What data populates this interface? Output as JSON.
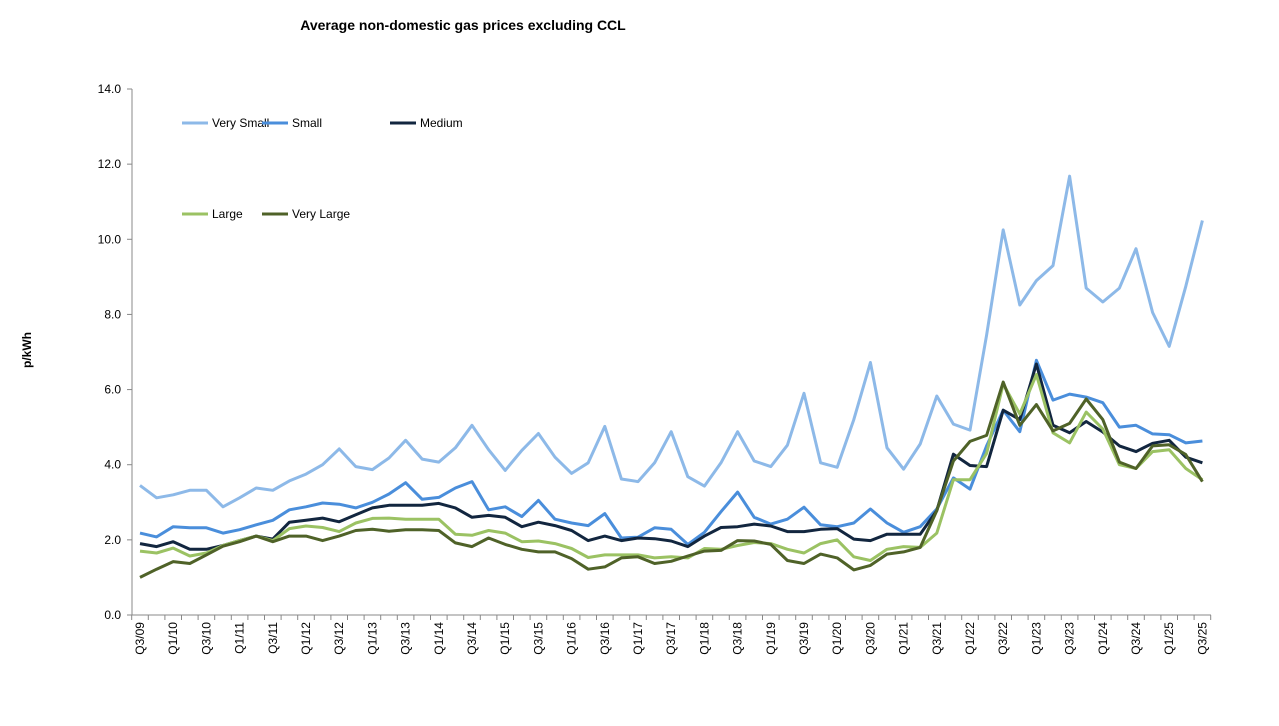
{
  "chart_data": {
    "type": "line",
    "title": "Average non-domestic gas prices excluding CCL",
    "ylabel": "p/kWh",
    "xlabel": "",
    "ylim": [
      0,
      14
    ],
    "y_ticks": [
      "0.0",
      "2.0",
      "4.0",
      "6.0",
      "8.0",
      "10.0",
      "12.0",
      "14.0"
    ],
    "grid": false,
    "legend_placement": "top-left",
    "x_tick_labels": [
      "Q3/09",
      "Q1/10",
      "Q3/10",
      "Q1/11",
      "Q3/11",
      "Q1/12",
      "Q3/12",
      "Q1/13",
      "Q3/13",
      "Q1/14",
      "Q3/14",
      "Q1/15",
      "Q3/15",
      "Q1/16",
      "Q3/16",
      "Q1/17",
      "Q3/17",
      "Q1/18",
      "Q3/18",
      "Q1/19",
      "Q3/19",
      "Q1/20",
      "Q3/20",
      "Q1/21",
      "Q3/21",
      "Q1/22",
      "Q3/22",
      "Q1/23",
      "Q3/23",
      "Q1/24",
      "Q3/24",
      "Q1/25",
      "Q3/25"
    ],
    "series": [
      {
        "name": "Very Small",
        "color": "#8DB9E8",
        "values": [
          3.45,
          3.12,
          3.2,
          3.32,
          3.32,
          2.88,
          3.12,
          3.38,
          3.32,
          3.57,
          3.75,
          4.0,
          4.42,
          3.95,
          3.87,
          4.18,
          4.65,
          4.15,
          4.07,
          4.45,
          5.05,
          4.4,
          3.85,
          4.38,
          4.83,
          4.2,
          3.77,
          4.05,
          5.02,
          3.62,
          3.55,
          4.05,
          4.88,
          3.68,
          3.43,
          4.05,
          4.88,
          4.1,
          3.95,
          4.52,
          5.9,
          4.05,
          3.93,
          5.2,
          6.72,
          4.45,
          3.88,
          4.55,
          5.83,
          5.08,
          4.92,
          7.45,
          10.25,
          8.25,
          8.9,
          9.3,
          11.68,
          8.7,
          8.33,
          8.7,
          9.75,
          8.05,
          7.15,
          8.75,
          10.5
        ]
      },
      {
        "name": "Small",
        "color": "#4A8EDB",
        "values": [
          2.18,
          2.08,
          2.35,
          2.32,
          2.32,
          2.18,
          2.27,
          2.4,
          2.52,
          2.8,
          2.88,
          2.98,
          2.95,
          2.85,
          3.0,
          3.22,
          3.52,
          3.08,
          3.13,
          3.38,
          3.55,
          2.8,
          2.88,
          2.62,
          3.05,
          2.55,
          2.45,
          2.38,
          2.7,
          2.05,
          2.07,
          2.32,
          2.28,
          1.88,
          2.2,
          2.75,
          3.27,
          2.6,
          2.42,
          2.55,
          2.87,
          2.4,
          2.35,
          2.45,
          2.82,
          2.45,
          2.2,
          2.35,
          2.82,
          3.65,
          3.35,
          4.5,
          5.45,
          4.88,
          6.78,
          5.72,
          5.88,
          5.8,
          5.65,
          5.0,
          5.05,
          4.82,
          4.8,
          4.58,
          4.63
        ]
      },
      {
        "name": "Medium",
        "color": "#12263F",
        "values": [
          1.9,
          1.82,
          1.95,
          1.75,
          1.75,
          1.85,
          1.98,
          2.1,
          2.02,
          2.47,
          2.52,
          2.58,
          2.48,
          2.67,
          2.85,
          2.92,
          2.92,
          2.92,
          2.97,
          2.85,
          2.6,
          2.65,
          2.6,
          2.35,
          2.47,
          2.38,
          2.25,
          1.98,
          2.1,
          1.98,
          2.05,
          2.03,
          1.97,
          1.82,
          2.1,
          2.33,
          2.35,
          2.42,
          2.37,
          2.22,
          2.22,
          2.28,
          2.3,
          2.02,
          1.98,
          2.15,
          2.15,
          2.15,
          2.78,
          4.28,
          3.98,
          3.95,
          5.45,
          5.2,
          6.68,
          5.05,
          4.85,
          5.15,
          4.87,
          4.5,
          4.35,
          4.57,
          4.65,
          4.2,
          4.05
        ]
      },
      {
        "name": "Large",
        "color": "#9BC263",
        "values": [
          1.7,
          1.65,
          1.78,
          1.57,
          1.65,
          1.85,
          1.98,
          2.1,
          1.98,
          2.3,
          2.37,
          2.33,
          2.22,
          2.45,
          2.57,
          2.58,
          2.55,
          2.55,
          2.55,
          2.15,
          2.12,
          2.25,
          2.18,
          1.95,
          1.97,
          1.9,
          1.77,
          1.53,
          1.6,
          1.6,
          1.6,
          1.52,
          1.55,
          1.52,
          1.77,
          1.75,
          1.85,
          1.93,
          1.9,
          1.75,
          1.65,
          1.9,
          2.0,
          1.55,
          1.45,
          1.75,
          1.82,
          1.8,
          2.18,
          3.6,
          3.6,
          4.3,
          6.15,
          5.35,
          6.4,
          4.85,
          4.58,
          5.4,
          4.95,
          4.0,
          3.9,
          4.35,
          4.4,
          3.9,
          3.6
        ]
      },
      {
        "name": "Very Large",
        "color": "#4F6228",
        "values": [
          1.0,
          1.22,
          1.42,
          1.37,
          1.6,
          1.83,
          1.95,
          2.1,
          1.95,
          2.1,
          2.1,
          1.98,
          2.1,
          2.25,
          2.28,
          2.23,
          2.27,
          2.27,
          2.25,
          1.92,
          1.82,
          2.05,
          1.88,
          1.75,
          1.68,
          1.68,
          1.5,
          1.22,
          1.28,
          1.52,
          1.55,
          1.37,
          1.43,
          1.57,
          1.7,
          1.72,
          1.98,
          1.97,
          1.88,
          1.45,
          1.37,
          1.62,
          1.52,
          1.2,
          1.32,
          1.62,
          1.68,
          1.8,
          2.78,
          4.1,
          4.62,
          4.78,
          6.2,
          5.05,
          5.6,
          4.9,
          5.1,
          5.75,
          5.2,
          4.07,
          3.9,
          4.5,
          4.53,
          4.27,
          3.55
        ]
      }
    ]
  }
}
